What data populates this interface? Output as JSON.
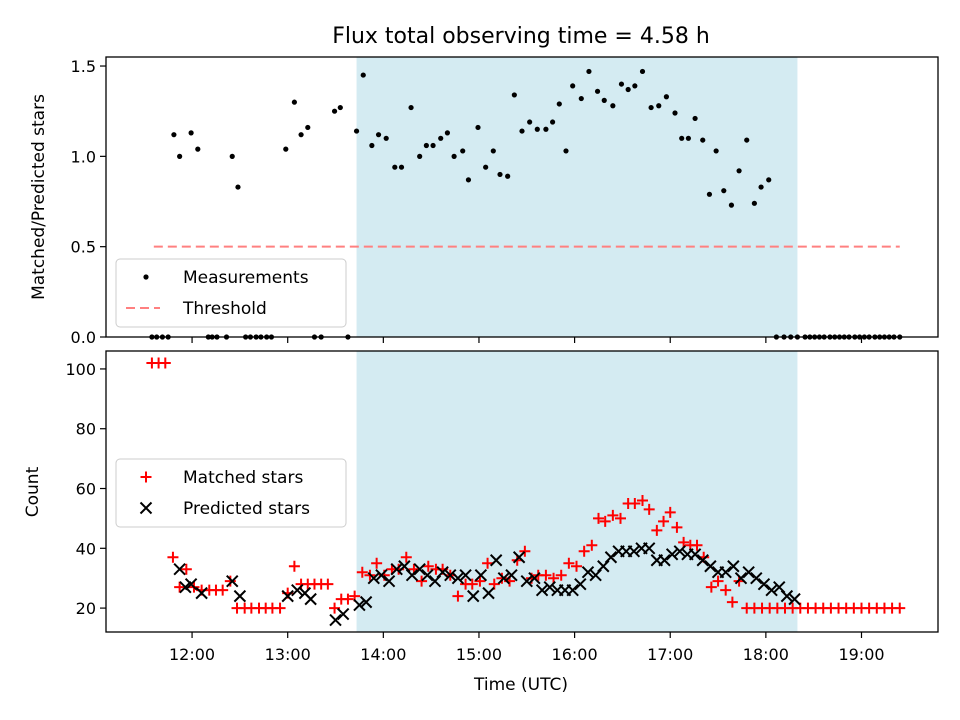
{
  "figure": {
    "title": "Flux total observing time = 4.58 h",
    "xlabel": "Time (UTC)"
  },
  "chart_data": [
    {
      "type": "scatter",
      "panel": "top",
      "ylabel": "Matched/Predicted stars",
      "xlim": [
        11.1,
        19.8
      ],
      "ylim": [
        0,
        1.55
      ],
      "yticks": [
        0.0,
        0.5,
        1.0,
        1.5
      ],
      "ytick_labels": [
        "0.0",
        "0.5",
        "1.0",
        "1.5"
      ],
      "highlight_span": {
        "x0": 13.72,
        "x1": 18.33,
        "color": "#add8e6"
      },
      "legend_location": "lower left",
      "series": [
        {
          "name": "Measurements",
          "kind": "dot",
          "color": "#000000",
          "x": [
            11.58,
            11.63,
            11.69,
            11.75,
            11.81,
            11.87,
            11.99,
            12.06,
            12.17,
            12.21,
            12.26,
            12.36,
            12.42,
            12.48,
            12.56,
            12.61,
            12.67,
            12.72,
            12.78,
            12.83,
            12.98,
            13.07,
            13.14,
            13.21,
            13.28,
            13.35,
            13.49,
            13.55,
            13.63,
            13.72,
            13.79,
            13.88,
            13.95,
            14.03,
            14.12,
            14.19,
            14.29,
            14.38,
            14.45,
            14.52,
            14.6,
            14.67,
            14.74,
            14.83,
            14.89,
            14.99,
            15.07,
            15.15,
            15.22,
            15.3,
            15.37,
            15.45,
            15.53,
            15.61,
            15.7,
            15.77,
            15.84,
            15.91,
            15.98,
            16.07,
            16.15,
            16.24,
            16.31,
            16.4,
            16.49,
            16.56,
            16.63,
            16.71,
            16.8,
            16.88,
            16.96,
            17.05,
            17.12,
            17.19,
            17.26,
            17.34,
            17.41,
            17.48,
            17.56,
            17.64,
            17.72,
            17.8,
            17.88,
            17.95,
            18.03,
            18.11,
            18.19,
            18.26,
            18.33,
            18.41,
            18.46,
            18.51,
            18.56,
            18.61,
            18.67,
            18.72,
            18.77,
            18.82,
            18.87,
            18.93,
            18.98,
            19.03,
            19.08,
            19.14,
            19.19,
            19.24,
            19.29,
            19.34,
            19.4
          ],
          "y": [
            0,
            0,
            0,
            0,
            1.12,
            1.0,
            1.13,
            1.04,
            0,
            0,
            0,
            0,
            1.0,
            0.83,
            0,
            0,
            0,
            0,
            0,
            0,
            1.04,
            1.3,
            1.12,
            1.16,
            0,
            0,
            1.25,
            1.27,
            0,
            1.14,
            1.45,
            1.06,
            1.12,
            1.1,
            0.94,
            0.94,
            1.27,
            1.0,
            1.06,
            1.06,
            1.1,
            1.13,
            1.0,
            1.03,
            0.87,
            1.16,
            0.94,
            1.03,
            0.9,
            0.89,
            1.34,
            1.14,
            1.19,
            1.15,
            1.15,
            1.19,
            1.29,
            1.03,
            1.39,
            1.32,
            1.47,
            1.36,
            1.31,
            1.28,
            1.4,
            1.37,
            1.39,
            1.47,
            1.27,
            1.28,
            1.33,
            1.24,
            1.1,
            1.1,
            1.21,
            1.09,
            0.79,
            1.03,
            0.81,
            0.73,
            0.92,
            1.09,
            0.74,
            0.83,
            0.87,
            0,
            0,
            0,
            0,
            0,
            0,
            0,
            0,
            0,
            0,
            0,
            0,
            0,
            0,
            0,
            0,
            0,
            0,
            0,
            0,
            0,
            0,
            0,
            0
          ]
        },
        {
          "name": "Threshold",
          "kind": "line",
          "color": "#ff8080",
          "dashed": true,
          "x": [
            11.6,
            19.4
          ],
          "y": [
            0.5,
            0.5
          ]
        }
      ]
    },
    {
      "type": "scatter",
      "panel": "bottom",
      "ylabel": "Count",
      "xlim": [
        11.1,
        19.8
      ],
      "ylim": [
        12,
        106
      ],
      "yticks": [
        20,
        40,
        60,
        80,
        100
      ],
      "ytick_labels": [
        "20",
        "40",
        "60",
        "80",
        "100"
      ],
      "xticks": [
        12,
        13,
        14,
        15,
        16,
        17,
        18,
        19
      ],
      "xtick_labels": [
        "12:00",
        "13:00",
        "14:00",
        "15:00",
        "16:00",
        "17:00",
        "18:00",
        "19:00"
      ],
      "highlight_span": {
        "x0": 13.72,
        "x1": 18.33,
        "color": "#add8e6"
      },
      "legend_location": "center left",
      "series": [
        {
          "name": "Matched stars",
          "kind": "plus",
          "color": "#ff0000",
          "x": [
            11.58,
            11.65,
            11.72,
            11.8,
            11.87,
            11.94,
            12.02,
            12.1,
            12.18,
            12.25,
            12.32,
            12.4,
            12.47,
            12.55,
            12.62,
            12.7,
            12.77,
            12.84,
            12.92,
            13.0,
            13.07,
            13.14,
            13.21,
            13.28,
            13.35,
            13.42,
            13.49,
            13.56,
            13.63,
            13.7,
            13.78,
            13.86,
            13.93,
            14.01,
            14.09,
            14.16,
            14.24,
            14.32,
            14.4,
            14.47,
            14.55,
            14.62,
            14.7,
            14.78,
            14.86,
            14.93,
            15.01,
            15.09,
            15.16,
            15.24,
            15.32,
            15.4,
            15.48,
            15.55,
            15.62,
            15.7,
            15.78,
            15.86,
            15.94,
            16.02,
            16.1,
            16.18,
            16.25,
            16.32,
            16.4,
            16.48,
            16.56,
            16.63,
            16.71,
            16.78,
            16.86,
            16.93,
            17.0,
            17.07,
            17.14,
            17.21,
            17.28,
            17.35,
            17.43,
            17.5,
            17.58,
            17.65,
            17.72,
            17.8,
            17.88,
            17.96,
            18.04,
            18.12,
            18.2,
            18.28,
            18.36,
            18.44,
            18.52,
            18.6,
            18.68,
            18.76,
            18.84,
            18.92,
            19.0,
            19.08,
            19.16,
            19.24,
            19.32,
            19.4
          ],
          "y": [
            102,
            102,
            102,
            37,
            27,
            33,
            27,
            26,
            26,
            26,
            26,
            29,
            20,
            20,
            20,
            20,
            20,
            20,
            20,
            25,
            34,
            28,
            28,
            28,
            28,
            28,
            20,
            23,
            23,
            24,
            32,
            31,
            35,
            31,
            33,
            33,
            37,
            33,
            29,
            34,
            33,
            33,
            31,
            24,
            28,
            28,
            29,
            35,
            28,
            30,
            29,
            36,
            39,
            30,
            31,
            31,
            30,
            31,
            35,
            34,
            39,
            41,
            50,
            49,
            51,
            50,
            55,
            55,
            56,
            53,
            46,
            49,
            52,
            47,
            42,
            41,
            41,
            37,
            27,
            29,
            26,
            22,
            29,
            20,
            20,
            20,
            20,
            20,
            20,
            20,
            20,
            20,
            20,
            20,
            20,
            20,
            20,
            20,
            20,
            20,
            20,
            20,
            20,
            20
          ]
        },
        {
          "name": "Predicted stars",
          "kind": "cross",
          "color": "#000000",
          "x": [
            11.87,
            11.93,
            11.99,
            12.1,
            12.42,
            12.5,
            13.0,
            13.1,
            13.18,
            13.24,
            13.5,
            13.58,
            13.75,
            13.82,
            13.9,
            13.98,
            14.06,
            14.14,
            14.22,
            14.3,
            14.38,
            14.46,
            14.54,
            14.62,
            14.7,
            14.78,
            14.86,
            14.94,
            15.02,
            15.1,
            15.18,
            15.26,
            15.34,
            15.42,
            15.5,
            15.58,
            15.66,
            15.74,
            15.82,
            15.9,
            15.98,
            16.06,
            16.14,
            16.22,
            16.3,
            16.38,
            16.46,
            16.54,
            16.62,
            16.7,
            16.78,
            16.86,
            16.94,
            17.02,
            17.1,
            17.18,
            17.26,
            17.34,
            17.42,
            17.5,
            17.58,
            17.66,
            17.74,
            17.82,
            17.9,
            17.98,
            18.06,
            18.14,
            18.22,
            18.3
          ],
          "y": [
            33,
            27,
            28,
            25,
            29,
            24,
            24,
            26,
            25,
            23,
            16,
            18,
            21,
            22,
            30,
            31,
            29,
            33,
            34,
            31,
            33,
            31,
            29,
            32,
            31,
            30,
            31,
            24,
            31,
            25,
            36,
            30,
            31,
            37,
            29,
            30,
            26,
            27,
            26,
            26,
            26,
            28,
            32,
            31,
            34,
            37,
            39,
            39,
            39,
            40,
            40,
            36,
            36,
            38,
            39,
            38,
            38,
            36,
            34,
            32,
            32,
            34,
            30,
            32,
            30,
            28,
            26,
            27,
            24,
            23
          ]
        }
      ]
    }
  ]
}
